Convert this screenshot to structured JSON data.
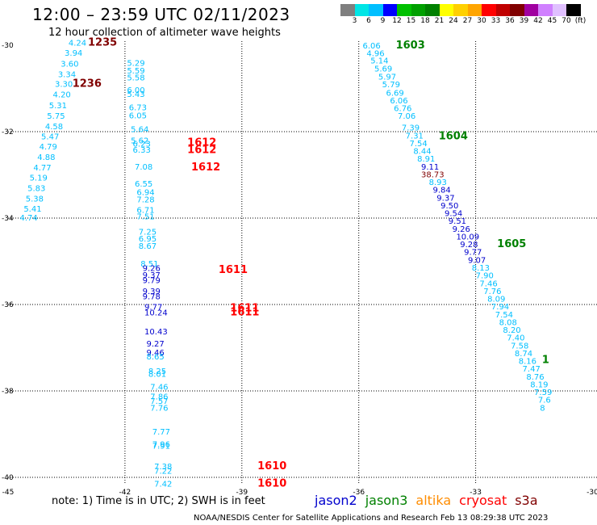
{
  "header": {
    "title": "12:00 – 23:59 UTC 02/11/2023",
    "subtitle": "12 hour collection of altimeter wave heights"
  },
  "colorbar": {
    "colors": [
      "#7f7f7f",
      "#00e5e5",
      "#00bfff",
      "#0000ff",
      "#00c000",
      "#00a000",
      "#008000",
      "#ffff00",
      "#ffd000",
      "#ffa500",
      "#ff0000",
      "#c00000",
      "#800000",
      "#a000a0",
      "#d080ff",
      "#e0c0ff",
      "#000000"
    ],
    "labels": [
      "3",
      "6",
      "9",
      "12",
      "15",
      "18",
      "21",
      "24",
      "27",
      "30",
      "33",
      "36",
      "39",
      "42",
      "45",
      "70",
      "(ft)"
    ]
  },
  "axes": {
    "lon_labels": [
      "-45",
      "-42",
      "-39",
      "-36",
      "-33",
      "-30"
    ],
    "lat_labels": [
      "-30",
      "-32",
      "-34",
      "-36",
      "-38",
      "-40"
    ]
  },
  "observations": [
    {
      "track": "a",
      "v": "4.24",
      "lon": -43.45,
      "lat": -29.93,
      "c": "#00bfff"
    },
    {
      "track": "a",
      "v": "3.94",
      "lon": -43.55,
      "lat": -30.17,
      "c": "#00bfff"
    },
    {
      "track": "a",
      "v": "3.60",
      "lon": -43.65,
      "lat": -30.42,
      "c": "#00bfff"
    },
    {
      "track": "a",
      "v": "3.34",
      "lon": -43.72,
      "lat": -30.66,
      "c": "#00bfff"
    },
    {
      "track": "a",
      "v": "3.30",
      "lon": -43.8,
      "lat": -30.89,
      "c": "#00bfff"
    },
    {
      "track": "a",
      "v": "4.20",
      "lon": -43.85,
      "lat": -31.13,
      "c": "#00bfff"
    },
    {
      "track": "a",
      "v": "5.31",
      "lon": -43.95,
      "lat": -31.38,
      "c": "#00bfff"
    },
    {
      "track": "a",
      "v": "5.75",
      "lon": -44.0,
      "lat": -31.63,
      "c": "#00bfff"
    },
    {
      "track": "a",
      "v": "4.58",
      "lon": -44.05,
      "lat": -31.87,
      "c": "#00bfff"
    },
    {
      "track": "a",
      "v": "5.47",
      "lon": -44.15,
      "lat": -32.1,
      "c": "#00bfff"
    },
    {
      "track": "a",
      "v": "4.79",
      "lon": -44.2,
      "lat": -32.34,
      "c": "#00bfff"
    },
    {
      "track": "a",
      "v": "4.88",
      "lon": -44.25,
      "lat": -32.58,
      "c": "#00bfff"
    },
    {
      "track": "a",
      "v": "4.77",
      "lon": -44.35,
      "lat": -32.82,
      "c": "#00bfff"
    },
    {
      "track": "a",
      "v": "5.19",
      "lon": -44.45,
      "lat": -33.06,
      "c": "#00bfff"
    },
    {
      "track": "a",
      "v": "5.83",
      "lon": -44.5,
      "lat": -33.3,
      "c": "#00bfff"
    },
    {
      "track": "a",
      "v": "5.38",
      "lon": -44.55,
      "lat": -33.54,
      "c": "#00bfff"
    },
    {
      "track": "a",
      "v": "5.41",
      "lon": -44.6,
      "lat": -33.78,
      "c": "#00bfff"
    },
    {
      "track": "a",
      "v": "4.74",
      "lon": -44.7,
      "lat": -33.98,
      "c": "#00bfff"
    },
    {
      "track": "b",
      "v": "5.29",
      "lon": -41.95,
      "lat": -30.4,
      "c": "#00bfff"
    },
    {
      "track": "b",
      "v": "5.59",
      "lon": -41.95,
      "lat": -30.58,
      "c": "#00bfff"
    },
    {
      "track": "b",
      "v": "5.58",
      "lon": -41.95,
      "lat": -30.74,
      "c": "#00bfff"
    },
    {
      "track": "b",
      "v": "6.00",
      "lon": -41.95,
      "lat": -31.03,
      "c": "#00bfff"
    },
    {
      "track": "b",
      "v": "5.43",
      "lon": -41.95,
      "lat": -31.12,
      "c": "#00bfff"
    },
    {
      "track": "b",
      "v": "6.73",
      "lon": -41.9,
      "lat": -31.43,
      "c": "#00bfff"
    },
    {
      "track": "b",
      "v": "6.05",
      "lon": -41.9,
      "lat": -31.62,
      "c": "#00bfff"
    },
    {
      "track": "b",
      "v": "5.64",
      "lon": -41.85,
      "lat": -31.93,
      "c": "#00bfff"
    },
    {
      "track": "b",
      "v": "5.62",
      "lon": -41.85,
      "lat": -32.2,
      "c": "#00bfff"
    },
    {
      "track": "b",
      "v": "6.23",
      "lon": -41.8,
      "lat": -32.27,
      "c": "#00bfff"
    },
    {
      "track": "b",
      "v": "6.33",
      "lon": -41.8,
      "lat": -32.41,
      "c": "#00bfff"
    },
    {
      "track": "b",
      "v": "7.08",
      "lon": -41.75,
      "lat": -32.8,
      "c": "#00bfff"
    },
    {
      "track": "b",
      "v": "6.55",
      "lon": -41.75,
      "lat": -33.2,
      "c": "#00bfff"
    },
    {
      "track": "b",
      "v": "6.94",
      "lon": -41.7,
      "lat": -33.39,
      "c": "#00bfff"
    },
    {
      "track": "b",
      "v": "7.28",
      "lon": -41.7,
      "lat": -33.56,
      "c": "#00bfff"
    },
    {
      "track": "b",
      "v": "6.71",
      "lon": -41.7,
      "lat": -33.8,
      "c": "#00bfff"
    },
    {
      "track": "b",
      "v": "7.51",
      "lon": -41.7,
      "lat": -33.95,
      "c": "#00bfff"
    },
    {
      "track": "b",
      "v": "7.25",
      "lon": -41.65,
      "lat": -34.31,
      "c": "#00bfff"
    },
    {
      "track": "b",
      "v": "6.95",
      "lon": -41.65,
      "lat": -34.47,
      "c": "#00bfff"
    },
    {
      "track": "b",
      "v": "8.67",
      "lon": -41.65,
      "lat": -34.64,
      "c": "#00bfff"
    },
    {
      "track": "b",
      "v": "8.51",
      "lon": -41.6,
      "lat": -35.05,
      "c": "#00bfff"
    },
    {
      "track": "b",
      "v": "9.26",
      "lon": -41.55,
      "lat": -35.15,
      "c": "#0000cd"
    },
    {
      "track": "b",
      "v": "9.37",
      "lon": -41.55,
      "lat": -35.31,
      "c": "#0000cd"
    },
    {
      "track": "b",
      "v": "9.79",
      "lon": -41.55,
      "lat": -35.43,
      "c": "#0000cd"
    },
    {
      "track": "b",
      "v": "9.39",
      "lon": -41.55,
      "lat": -35.68,
      "c": "#0000cd"
    },
    {
      "track": "b",
      "v": "9.78",
      "lon": -41.55,
      "lat": -35.8,
      "c": "#0000cd"
    },
    {
      "track": "b",
      "v": "9.77",
      "lon": -41.5,
      "lat": -36.05,
      "c": "#0000cd"
    },
    {
      "track": "b",
      "v": "10.24",
      "lon": -41.5,
      "lat": -36.18,
      "c": "#0000cd"
    },
    {
      "track": "b",
      "v": "10.43",
      "lon": -41.5,
      "lat": -36.62,
      "c": "#0000cd"
    },
    {
      "track": "b",
      "v": "9.27",
      "lon": -41.45,
      "lat": -36.9,
      "c": "#0000cd"
    },
    {
      "track": "b",
      "v": "9.46",
      "lon": -41.45,
      "lat": -37.1,
      "c": "#0000cd"
    },
    {
      "track": "b",
      "v": "8.65",
      "lon": -41.45,
      "lat": -37.2,
      "c": "#00bfff"
    },
    {
      "track": "b",
      "v": "8.25",
      "lon": -41.4,
      "lat": -37.53,
      "c": "#00bfff"
    },
    {
      "track": "b",
      "v": "8.01",
      "lon": -41.4,
      "lat": -37.6,
      "c": "#00bfff"
    },
    {
      "track": "b",
      "v": "7.46",
      "lon": -41.35,
      "lat": -37.9,
      "c": "#00bfff"
    },
    {
      "track": "b",
      "v": "7.86",
      "lon": -41.35,
      "lat": -38.12,
      "c": "#00bfff"
    },
    {
      "track": "b",
      "v": "7.57",
      "lon": -41.35,
      "lat": -38.22,
      "c": "#00bfff"
    },
    {
      "track": "b",
      "v": "7.76",
      "lon": -41.35,
      "lat": -38.38,
      "c": "#00bfff"
    },
    {
      "track": "b",
      "v": "7.77",
      "lon": -41.3,
      "lat": -38.93,
      "c": "#00bfff"
    },
    {
      "track": "b",
      "v": "7.96",
      "lon": -41.3,
      "lat": -39.22,
      "c": "#00bfff"
    },
    {
      "track": "b",
      "v": "7.91",
      "lon": -41.3,
      "lat": -39.26,
      "c": "#00bfff"
    },
    {
      "track": "b",
      "v": "7.38",
      "lon": -41.25,
      "lat": -39.74,
      "c": "#00bfff"
    },
    {
      "track": "b",
      "v": "7.22",
      "lon": -41.25,
      "lat": -39.84,
      "c": "#00bfff"
    },
    {
      "track": "b",
      "v": "7.42",
      "lon": -41.25,
      "lat": -40.14,
      "c": "#00bfff"
    },
    {
      "track": "c",
      "v": "6.06",
      "lon": -35.9,
      "lat": -30.0,
      "c": "#00bfff"
    },
    {
      "track": "c",
      "v": "4.96",
      "lon": -35.8,
      "lat": -30.18,
      "c": "#00bfff"
    },
    {
      "track": "c",
      "v": "5.14",
      "lon": -35.7,
      "lat": -30.35,
      "c": "#00bfff"
    },
    {
      "track": "c",
      "v": "5.69",
      "lon": -35.6,
      "lat": -30.53,
      "c": "#00bfff"
    },
    {
      "track": "c",
      "v": "5.97",
      "lon": -35.5,
      "lat": -30.72,
      "c": "#00bfff"
    },
    {
      "track": "c",
      "v": "5.79",
      "lon": -35.4,
      "lat": -30.9,
      "c": "#00bfff"
    },
    {
      "track": "c",
      "v": "6.69",
      "lon": -35.3,
      "lat": -31.09,
      "c": "#00bfff"
    },
    {
      "track": "c",
      "v": "6.06",
      "lon": -35.2,
      "lat": -31.27,
      "c": "#00bfff"
    },
    {
      "track": "c",
      "v": "6.76",
      "lon": -35.1,
      "lat": -31.45,
      "c": "#00bfff"
    },
    {
      "track": "c",
      "v": "7.06",
      "lon": -35.0,
      "lat": -31.63,
      "c": "#00bfff"
    },
    {
      "track": "c",
      "v": "7.39",
      "lon": -34.9,
      "lat": -31.9,
      "c": "#00bfff"
    },
    {
      "track": "c",
      "v": "7.31",
      "lon": -34.8,
      "lat": -32.08,
      "c": "#00bfff"
    },
    {
      "track": "c",
      "v": "7.54",
      "lon": -34.7,
      "lat": -32.26,
      "c": "#00bfff"
    },
    {
      "track": "c",
      "v": "8.44",
      "lon": -34.6,
      "lat": -32.44,
      "c": "#00bfff"
    },
    {
      "track": "c",
      "v": "8.91",
      "lon": -34.5,
      "lat": -32.62,
      "c": "#00bfff"
    },
    {
      "track": "c",
      "v": "9.11",
      "lon": -34.4,
      "lat": -32.8,
      "c": "#0000cd"
    },
    {
      "track": "c",
      "v": "38.73",
      "lon": -34.4,
      "lat": -32.98,
      "c": "#800000"
    },
    {
      "track": "c",
      "v": "8.93",
      "lon": -34.2,
      "lat": -33.16,
      "c": "#00bfff"
    },
    {
      "track": "c",
      "v": "9.84",
      "lon": -34.1,
      "lat": -33.34,
      "c": "#0000cd"
    },
    {
      "track": "c",
      "v": "9.37",
      "lon": -34.0,
      "lat": -33.52,
      "c": "#0000cd"
    },
    {
      "track": "c",
      "v": "9.50",
      "lon": -33.9,
      "lat": -33.7,
      "c": "#0000cd"
    },
    {
      "track": "c",
      "v": "9.54",
      "lon": -33.8,
      "lat": -33.88,
      "c": "#0000cd"
    },
    {
      "track": "c",
      "v": "9.51",
      "lon": -33.7,
      "lat": -34.06,
      "c": "#0000cd"
    },
    {
      "track": "c",
      "v": "9.26",
      "lon": -33.6,
      "lat": -34.24,
      "c": "#0000cd"
    },
    {
      "track": "c",
      "v": "10.09",
      "lon": -33.5,
      "lat": -34.42,
      "c": "#0000cd"
    },
    {
      "track": "c",
      "v": "9.28",
      "lon": -33.4,
      "lat": -34.6,
      "c": "#0000cd"
    },
    {
      "track": "c",
      "v": "9.77",
      "lon": -33.3,
      "lat": -34.78,
      "c": "#0000cd"
    },
    {
      "track": "c",
      "v": "9.07",
      "lon": -33.2,
      "lat": -34.96,
      "c": "#0000cd"
    },
    {
      "track": "c",
      "v": "8.13",
      "lon": -33.1,
      "lat": -35.14,
      "c": "#00bfff"
    },
    {
      "track": "c",
      "v": "7.90",
      "lon": -33.0,
      "lat": -35.32,
      "c": "#00bfff"
    },
    {
      "track": "c",
      "v": "7.46",
      "lon": -32.9,
      "lat": -35.5,
      "c": "#00bfff"
    },
    {
      "track": "c",
      "v": "7.76",
      "lon": -32.8,
      "lat": -35.68,
      "c": "#00bfff"
    },
    {
      "track": "c",
      "v": "8.09",
      "lon": -32.7,
      "lat": -35.86,
      "c": "#00bfff"
    },
    {
      "track": "c",
      "v": "7.94",
      "lon": -32.6,
      "lat": -36.04,
      "c": "#00bfff"
    },
    {
      "track": "c",
      "v": "7.54",
      "lon": -32.5,
      "lat": -36.22,
      "c": "#00bfff"
    },
    {
      "track": "c",
      "v": "8.08",
      "lon": -32.4,
      "lat": -36.4,
      "c": "#00bfff"
    },
    {
      "track": "c",
      "v": "8.20",
      "lon": -32.3,
      "lat": -36.58,
      "c": "#00bfff"
    },
    {
      "track": "c",
      "v": "7.40",
      "lon": -32.2,
      "lat": -36.76,
      "c": "#00bfff"
    },
    {
      "track": "c",
      "v": "7.58",
      "lon": -32.1,
      "lat": -36.94,
      "c": "#00bfff"
    },
    {
      "track": "c",
      "v": "8.74",
      "lon": -32.0,
      "lat": -37.12,
      "c": "#00bfff"
    },
    {
      "track": "c",
      "v": "8.16",
      "lon": -31.9,
      "lat": -37.3,
      "c": "#00bfff"
    },
    {
      "track": "c",
      "v": "7.47",
      "lon": -31.8,
      "lat": -37.48,
      "c": "#00bfff"
    },
    {
      "track": "c",
      "v": "8.76",
      "lon": -31.7,
      "lat": -37.66,
      "c": "#00bfff"
    },
    {
      "track": "c",
      "v": "8.19",
      "lon": -31.6,
      "lat": -37.84,
      "c": "#00bfff"
    },
    {
      "track": "c",
      "v": "7.59",
      "lon": -31.5,
      "lat": -38.02,
      "c": "#00bfff"
    },
    {
      "track": "c",
      "v": "7.6",
      "lon": -31.4,
      "lat": -38.2,
      "c": "#00bfff"
    },
    {
      "track": "c",
      "v": "8",
      "lon": -31.35,
      "lat": -38.38,
      "c": "#00bfff"
    }
  ],
  "pass_labels": [
    {
      "text": "1235",
      "lon": -42.95,
      "lat": -29.93,
      "c": "#800000"
    },
    {
      "text": "1236",
      "lon": -43.35,
      "lat": -30.89,
      "c": "#800000"
    },
    {
      "text": "1612",
      "lon": -40.4,
      "lat": -32.25,
      "c": "#ff0000"
    },
    {
      "text": "1612",
      "lon": -40.4,
      "lat": -32.42,
      "c": "#ff0000"
    },
    {
      "text": "1612",
      "lon": -40.3,
      "lat": -32.82,
      "c": "#ff0000"
    },
    {
      "text": "1611",
      "lon": -39.6,
      "lat": -35.2,
      "c": "#ff0000"
    },
    {
      "text": "1611",
      "lon": -39.3,
      "lat": -36.08,
      "c": "#ff0000"
    },
    {
      "text": "1611",
      "lon": -39.3,
      "lat": -36.18,
      "c": "#ff0000"
    },
    {
      "text": "1610",
      "lon": -38.6,
      "lat": -39.74,
      "c": "#ff0000"
    },
    {
      "text": "1610",
      "lon": -38.6,
      "lat": -40.14,
      "c": "#ff0000"
    },
    {
      "text": "1603",
      "lon": -35.05,
      "lat": -30.0,
      "c": "#008000"
    },
    {
      "text": "1604",
      "lon": -33.95,
      "lat": -32.1,
      "c": "#008000"
    },
    {
      "text": "1605",
      "lon": -32.45,
      "lat": -34.6,
      "c": "#008000"
    },
    {
      "text": "1",
      "lon": -31.3,
      "lat": -37.28,
      "c": "#008000"
    }
  ],
  "footer": {
    "note": "note:  1) Time is in UTC;  2) SWH is in feet",
    "satellites": [
      {
        "name": "jason2",
        "color": "#0000cd"
      },
      {
        "name": "jason3",
        "color": "#008000"
      },
      {
        "name": "altika",
        "color": "#ff8c00"
      },
      {
        "name": "cryosat",
        "color": "#ff0000"
      },
      {
        "name": "s3a",
        "color": "#800000"
      }
    ],
    "credit": "NOAA/NESDIS Center for Satellite Applications and Research    Feb 13 08:29:38 UTC 2023"
  }
}
